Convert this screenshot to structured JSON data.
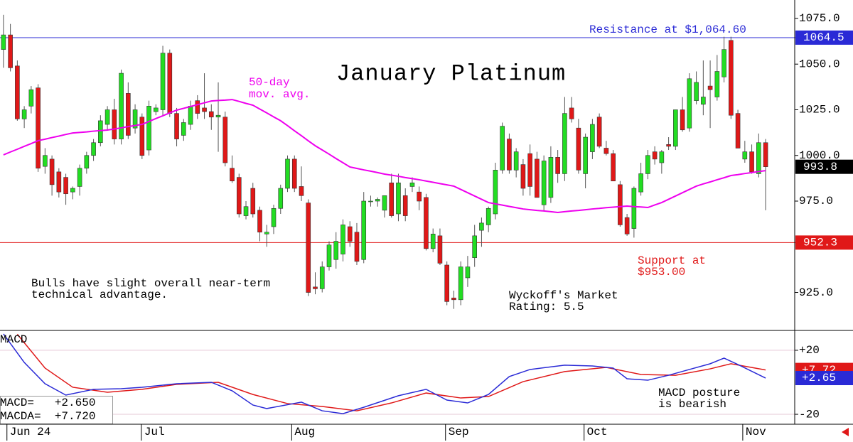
{
  "chart_data": [
    {
      "type": "candlestick",
      "title": "January Platinum",
      "up_color": "#22dd22",
      "down_color": "#e01818",
      "wick_color": "#555555",
      "xlim": [
        -0.5,
        114.2
      ],
      "ylim": [
        904.2,
        1085.1
      ],
      "xticks": [
        {
          "value": 0.5,
          "label": "Jun 24"
        },
        {
          "value": 19.9,
          "label": "Jul"
        },
        {
          "value": 41.6,
          "label": "Aug"
        },
        {
          "value": 63.8,
          "label": "Sep"
        },
        {
          "value": 83.8,
          "label": "Oct"
        },
        {
          "value": 106.7,
          "label": "Nov"
        }
      ],
      "yticks": [
        {
          "value": 1075,
          "label": "1075.0"
        },
        {
          "value": 1050,
          "label": "1050.0"
        },
        {
          "value": 1025,
          "label": "1025.0"
        },
        {
          "value": 1000,
          "label": "1000.0"
        },
        {
          "value": 975,
          "label": "975.0"
        },
        {
          "value": 925,
          "label": "925.0"
        }
      ],
      "open": [
        1058,
        1066,
        1049,
        1020,
        1027,
        1037,
        994,
        998,
        991,
        988,
        980,
        983,
        993,
        1000,
        1007,
        1017,
        1025,
        1009,
        1034,
        1015,
        1021,
        1003,
        1024,
        1025,
        1056,
        1023,
        1011,
        1017,
        1030,
        1026,
        1024,
        1021,
        1021,
        993,
        988,
        967,
        982,
        970,
        957,
        961,
        971,
        982,
        998,
        983,
        974,
        928,
        927,
        939,
        943,
        946,
        961,
        958,
        943,
        975,
        975,
        970,
        985,
        968,
        978,
        983,
        980,
        977,
        949,
        956,
        940,
        922,
        921,
        933,
        944,
        959,
        962,
        968,
        992,
        1009,
        992,
        995,
        1001,
        998,
        973,
        977,
        999,
        990,
        1026,
        1015,
        990,
        1002,
        1021,
        1004,
        1001,
        984,
        966,
        960,
        980,
        990,
        1002,
        996,
        1006,
        1005,
        1025,
        1015,
        1030,
        1028,
        1038,
        1032,
        1043,
        1063,
        1023,
        998,
        1002,
        990,
        1007
      ],
      "high": [
        1077,
        1072,
        1052,
        1027,
        1038,
        1039,
        1004,
        1000,
        993,
        990,
        983,
        995,
        1002,
        1009,
        1022,
        1027,
        1031,
        1047,
        1040,
        1028,
        1023,
        1030,
        1028,
        1060,
        1058,
        1026,
        1020,
        1030,
        1033,
        1045,
        1028,
        1040,
        1024,
        1000,
        990,
        975,
        985,
        972,
        962,
        973,
        984,
        1000,
        1000,
        994,
        976,
        936,
        942,
        953,
        958,
        965,
        964,
        963,
        980,
        978,
        977,
        978,
        990,
        990,
        982,
        988,
        983,
        979,
        960,
        960,
        942,
        926,
        942,
        945,
        962,
        966,
        972,
        996,
        1018,
        1012,
        1004,
        998,
        1006,
        1002,
        1000,
        1005,
        1003,
        1032,
        1032,
        1020,
        1012,
        1020,
        1023,
        1008,
        1003,
        986,
        968,
        983,
        996,
        1003,
        1005,
        1003,
        1010,
        1025,
        1032,
        1045,
        1046,
        1052,
        1052,
        1055,
        1065,
        1065,
        1025,
        1008,
        1006,
        1012,
        1009
      ],
      "low": [
        1048,
        1046,
        1019,
        1015,
        1023,
        991,
        990,
        978,
        977,
        973,
        976,
        978,
        990,
        997,
        1005,
        1014,
        1006,
        1006,
        1009,
        1012,
        998,
        1000,
        1022,
        1022,
        1021,
        1005,
        1008,
        1014,
        1020,
        1020,
        1014,
        1002,
        994,
        985,
        966,
        965,
        966,
        953,
        950,
        957,
        968,
        980,
        980,
        975,
        923,
        924,
        925,
        937,
        938,
        942,
        950,
        940,
        941,
        972,
        972,
        966,
        966,
        964,
        964,
        980,
        970,
        948,
        947,
        940,
        918,
        916,
        918,
        928,
        939,
        950,
        958,
        965,
        990,
        990,
        988,
        978,
        978,
        977,
        970,
        974,
        985,
        986,
        1018,
        990,
        982,
        998,
        1004,
        1000,
        986,
        961,
        956,
        955,
        978,
        987,
        995,
        990,
        1003,
        1003,
        1013,
        1013,
        1028,
        1022,
        1015,
        1030,
        1040,
        1020,
        1004,
        996,
        990,
        988,
        970
      ],
      "close": [
        1066,
        1048,
        1020,
        1025,
        1036,
        993,
        1000,
        984,
        980,
        979,
        982,
        993,
        1000,
        1007,
        1019,
        1025,
        1009,
        1045,
        1011,
        1025,
        1000,
        1027,
        1026,
        1056,
        1023,
        1009,
        1018,
        1027,
        1023,
        1024,
        1021,
        1022,
        996,
        986,
        968,
        972,
        968,
        958,
        958,
        971,
        982,
        998,
        982,
        978,
        925,
        927,
        939,
        951,
        953,
        962,
        953,
        942,
        975,
        975,
        976,
        978,
        967,
        985,
        967,
        985,
        975,
        949,
        957,
        941,
        920,
        921,
        939,
        939,
        956,
        963,
        971,
        992,
        1016,
        992,
        1002,
        982,
        983,
        977,
        997,
        999,
        990,
        1023,
        1020,
        992,
        1010,
        1017,
        1005,
        1001,
        986,
        962,
        957,
        982,
        990,
        1000,
        998,
        1002,
        1005,
        1025,
        1014,
        1042,
        1040,
        1032,
        1036,
        1046,
        1058,
        1022,
        1004,
        1002,
        991,
        1007,
        993.8
      ],
      "moving_average": {
        "color": "#ee00ee",
        "values": [
          1000.3,
          1001.9,
          1003.4,
          1005.0,
          1006.5,
          1008.1,
          1008.9,
          1009.8,
          1010.6,
          1011.5,
          1012.3,
          1012.6,
          1012.9,
          1013.3,
          1013.6,
          1013.9,
          1014.5,
          1015.1,
          1015.8,
          1016.4,
          1017.0,
          1018.6,
          1020.2,
          1021.7,
          1023.3,
          1024.8,
          1025.8,
          1026.8,
          1027.8,
          1028.8,
          1029.8,
          1030.1,
          1030.3,
          1030.6,
          1029.6,
          1028.5,
          1027.5,
          1025.4,
          1023.3,
          1021.1,
          1019.0,
          1016.3,
          1013.5,
          1010.8,
          1008.0,
          1005.3,
          1003.0,
          1000.7,
          998.3,
          996.0,
          993.7,
          992.9,
          992.1,
          991.4,
          990.6,
          989.8,
          989.2,
          988.6,
          987.9,
          987.3,
          986.7,
          986.0,
          985.3,
          984.6,
          983.9,
          983.2,
          981.4,
          979.6,
          977.8,
          976.0,
          974.2,
          973.5,
          972.8,
          972.1,
          971.4,
          970.7,
          970.3,
          969.9,
          969.6,
          969.2,
          968.8,
          969.2,
          969.6,
          969.9,
          970.3,
          970.7,
          971.0,
          971.4,
          971.7,
          972.0,
          972.3,
          972.0,
          971.8,
          971.5,
          972.9,
          974.2,
          976.0,
          977.8,
          979.6,
          981.4,
          983.2,
          984.4,
          985.5,
          986.7,
          987.8,
          989.0,
          989.5,
          990.1,
          990.6,
          991.2,
          991.7
        ]
      },
      "tags": [
        {
          "value": 1064.5,
          "label": "1064.5",
          "color": "#2a2ad6",
          "horizontal_line": true
        },
        {
          "value": 993.8,
          "label": "993.8",
          "color": "#000000",
          "horizontal_line": false
        },
        {
          "value": 952.3,
          "label": "952.3",
          "color": "#e01818",
          "horizontal_line": true
        }
      ],
      "annotations": {
        "resistance": "Resistance at $1,064.60",
        "ma_label": [
          "50-day",
          "mov. avg."
        ],
        "support": [
          "Support at",
          "$953.00"
        ],
        "outlook": [
          "Bulls have slight overall near-term",
          "technical advantage."
        ],
        "rating": [
          "Wyckoff's Market",
          "Rating: 5.5"
        ]
      }
    },
    {
      "type": "line",
      "title": "MACD",
      "grid": true,
      "grid_color": "#e6c8d6",
      "xlim": [
        -0.5,
        114.2
      ],
      "ylim": [
        -26.2,
        32.4
      ],
      "yticks": [
        {
          "value": 20,
          "label": "+20"
        },
        {
          "value": -20,
          "label": "-20"
        }
      ],
      "series": [
        {
          "color": "#e01818",
          "x": [
            2,
            6,
            10,
            15,
            20,
            25,
            31,
            36,
            41,
            46,
            51,
            56,
            61,
            66,
            70,
            75,
            81,
            87,
            92,
            97,
            102,
            105,
            110
          ],
          "values": [
            30,
            8.9,
            -3.1,
            -6.2,
            -4.4,
            -1.3,
            0,
            -7.6,
            -13.3,
            -15.1,
            -17.8,
            -12.9,
            -6.7,
            -9.8,
            -8.9,
            0.4,
            6.7,
            9.3,
            4.9,
            4.4,
            8.4,
            11.6,
            7.72
          ]
        },
        {
          "color": "#2a2ad6",
          "x": [
            0,
            3,
            6,
            9,
            13,
            17,
            20,
            25,
            30,
            33,
            36,
            38,
            43,
            46,
            49,
            52,
            57,
            61,
            64,
            67,
            70,
            73,
            76,
            81,
            85,
            88,
            90,
            93,
            96,
            99,
            102,
            104,
            106,
            110
          ],
          "values": [
            30.2,
            12.4,
            -0.9,
            -8,
            -4.4,
            -4,
            -3.1,
            -0.9,
            0,
            -5.3,
            -14.2,
            -16.4,
            -12.4,
            -17.8,
            -19.6,
            -15.6,
            -8.4,
            -4.4,
            -11.1,
            -12.9,
            -7.6,
            3.6,
            8,
            10.7,
            10.2,
            8.9,
            2.2,
            1.3,
            4.4,
            8,
            11.6,
            15.1,
            11.1,
            2.65
          ]
        }
      ],
      "tags": [
        {
          "value": 7.72,
          "label": "+7.72",
          "color": "#e01818"
        },
        {
          "value": 2.65,
          "label": "+2.65",
          "color": "#2a2ad6"
        }
      ],
      "readout": [
        "MACD=   +2.650",
        "MACDA=  +7.720"
      ],
      "annotation": [
        "MACD posture",
        "is bearish"
      ]
    }
  ]
}
